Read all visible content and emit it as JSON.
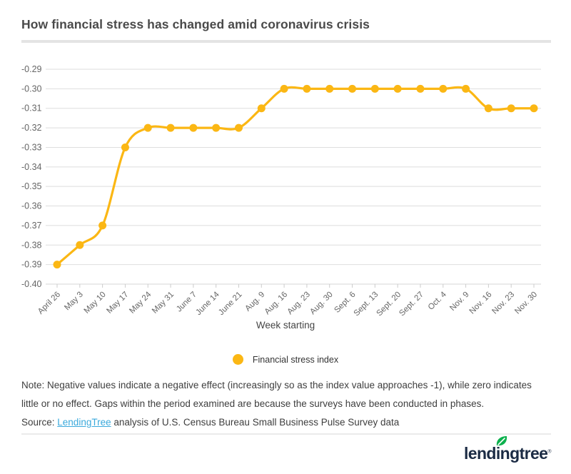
{
  "header": {
    "title": "How financial stress has changed amid coronavirus crisis"
  },
  "chart_data": {
    "type": "line",
    "title": "How financial stress has changed amid coronavirus crisis",
    "categories": [
      "April 26",
      "May 3",
      "May 10",
      "May 17",
      "May 24",
      "May 31",
      "June 7",
      "June 14",
      "June 21",
      "Aug. 9",
      "Aug. 16",
      "Aug. 23",
      "Aug. 30",
      "Sept. 6",
      "Sept. 13",
      "Sept. 20",
      "Sept. 27",
      "Oct. 4",
      "Nov. 9",
      "Nov. 16",
      "Nov. 23",
      "Nov. 30"
    ],
    "series": [
      {
        "name": "Financial stress index",
        "values": [
          -0.39,
          -0.38,
          -0.37,
          -0.33,
          -0.32,
          -0.32,
          -0.32,
          -0.32,
          -0.32,
          -0.31,
          -0.3,
          -0.3,
          -0.3,
          -0.3,
          -0.3,
          -0.3,
          -0.3,
          -0.3,
          -0.3,
          -0.31,
          -0.31,
          -0.31
        ]
      }
    ],
    "xlabel": "Week starting",
    "ylabel": "",
    "ylim": [
      -0.4,
      -0.29
    ],
    "yticks": [
      -0.29,
      -0.3,
      -0.31,
      -0.32,
      -0.33,
      -0.34,
      -0.35,
      -0.36,
      -0.37,
      -0.38,
      -0.39,
      -0.4
    ],
    "grid": true,
    "legend_position": "bottom"
  },
  "legend": {
    "label": "Financial stress index",
    "swatch_color": "#fbb714"
  },
  "note": {
    "text": "Note: Negative values indicate a negative effect (increasingly so as the index value approaches -1), while zero indicates little or no effect. Gaps within the period examined are because the surveys have been conducted in phases."
  },
  "source": {
    "prefix": "Source: ",
    "link_text": "LendingTree",
    "suffix": " analysis of U.S. Census Bureau Small Business Pulse Survey data"
  },
  "footer": {
    "logo_text": "lendingtree",
    "registered_mark": "®"
  },
  "colors": {
    "line": "#fbb714",
    "gridline": "#dedede",
    "axis_line": "#d4d4d4",
    "tick": "#cccccc",
    "axis_label": "#666666",
    "title": "#4a4a4a",
    "note_text": "#3e3e3e",
    "link": "#3aa9dc",
    "logo_navy": "#1b2b44",
    "leaf_green": "#0cb14d"
  }
}
